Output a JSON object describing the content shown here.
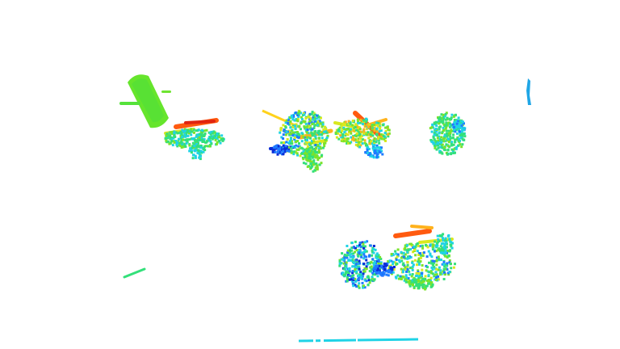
{
  "scene": {
    "background": "#ffffff",
    "colormap": [
      "#0a2bd6",
      "#1e7bff",
      "#1fd3e6",
      "#33e07a",
      "#7be32a",
      "#d9e81e",
      "#ffb21c",
      "#ff5a0f",
      "#e0240f"
    ],
    "clusters": [
      {
        "name": "bin-object",
        "color_hint": "#7be32a"
      },
      {
        "name": "plant-left"
      },
      {
        "name": "plant-center-left"
      },
      {
        "name": "plant-center-right"
      },
      {
        "name": "plant-right"
      },
      {
        "name": "plant-bottom"
      },
      {
        "name": "post-right",
        "color_hint": "#1fa6e6"
      },
      {
        "name": "stick-left",
        "color_hint": "#33e07a"
      },
      {
        "name": "ground-line",
        "color_hint": "#1fd3e6"
      }
    ]
  }
}
